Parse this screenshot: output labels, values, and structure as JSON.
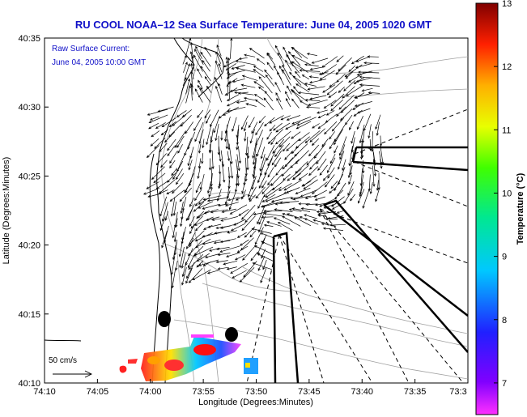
{
  "chart_data": {
    "type": "map",
    "title": "RU COOL  NOAA–12  Sea Surface Temperature:  June 04, 2005 1020 GMT",
    "xlabel": "Longitude (Degrees:Minutes)",
    "ylabel": "Latitude (Degrees:Minutes)",
    "x_ticks": [
      "74:10",
      "74:05",
      "74:00",
      "73:55",
      "73:50",
      "73:45",
      "73:40",
      "73:35",
      "73:3"
    ],
    "y_ticks": [
      "40:35",
      "40:30",
      "40:25",
      "40:20",
      "40:15",
      "40:10"
    ],
    "annotation_lines": [
      "Raw Surface Current:",
      "June 04, 2005 10:00 GMT"
    ],
    "scale_label": "50 cm/s",
    "colorbar": {
      "label": "Temperature (°C)",
      "ticks": [
        "13",
        "12",
        "11",
        "10",
        "9",
        "8",
        "7"
      ],
      "range": [
        6.5,
        13
      ]
    }
  },
  "colors": {
    "title": "#1010c8",
    "coast": "#000000",
    "bathymetry": "#a0a0a0",
    "vectors": "#000000"
  }
}
